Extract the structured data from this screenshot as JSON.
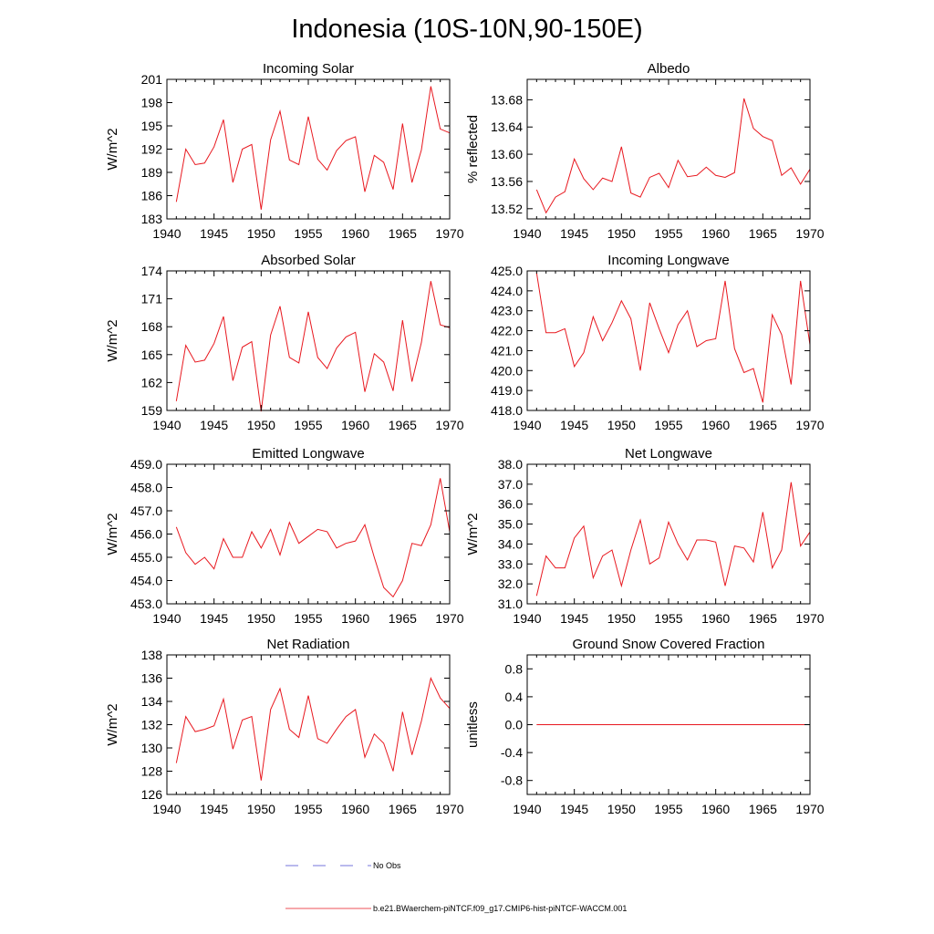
{
  "title": "Indonesia (10S-10N,90-150E)",
  "colors": {
    "model": "#e8181f",
    "obs": "#4a4ad0"
  },
  "legend": {
    "obs_label": "No Obs",
    "model_label": "b.e21.BWaerchem-piNTCF.f09_g17.CMIP6-hist-piNTCF-WACCM.001"
  },
  "chart_data": [
    {
      "type": "line",
      "title": "Incoming Solar",
      "ylabel": "W/m^2",
      "xlim": [
        1940,
        1970
      ],
      "ylim": [
        183,
        201
      ],
      "xticks": [
        1940,
        1945,
        1950,
        1955,
        1960,
        1965,
        1970
      ],
      "yticks": [
        "183",
        "186",
        "189",
        "192",
        "195",
        "198",
        "201"
      ],
      "x": [
        1941,
        1942,
        1943,
        1944,
        1945,
        1946,
        1947,
        1948,
        1949,
        1950,
        1951,
        1952,
        1953,
        1954,
        1955,
        1956,
        1957,
        1958,
        1959,
        1960,
        1961,
        1962,
        1963,
        1964,
        1965,
        1966,
        1967,
        1968,
        1969,
        1970
      ],
      "series": [
        {
          "values": [
            185.2,
            192.0,
            190.0,
            190.2,
            192.3,
            195.8,
            187.7,
            192.0,
            192.6,
            184.2,
            193.2,
            196.9,
            190.6,
            190.0,
            196.2,
            190.7,
            189.3,
            191.8,
            193.1,
            193.6,
            186.5,
            191.2,
            190.3,
            186.8,
            195.3,
            187.7,
            191.9,
            200.1,
            194.6,
            194.1
          ]
        }
      ]
    },
    {
      "type": "line",
      "title": "Albedo",
      "ylabel": "% reflected",
      "xlim": [
        1940,
        1970
      ],
      "ylim": [
        13.505,
        13.71
      ],
      "xticks": [
        1940,
        1945,
        1950,
        1955,
        1960,
        1965,
        1970
      ],
      "yticks": [
        "13.52",
        "13.56",
        "13.60",
        "13.64",
        "13.68"
      ],
      "x": [
        1941,
        1942,
        1943,
        1944,
        1945,
        1946,
        1947,
        1948,
        1949,
        1950,
        1951,
        1952,
        1953,
        1954,
        1955,
        1956,
        1957,
        1958,
        1959,
        1960,
        1961,
        1962,
        1963,
        1964,
        1965,
        1966,
        1967,
        1968,
        1969,
        1970
      ],
      "series": [
        {
          "values": [
            13.548,
            13.514,
            13.537,
            13.545,
            13.593,
            13.564,
            13.548,
            13.565,
            13.56,
            13.611,
            13.543,
            13.537,
            13.566,
            13.572,
            13.551,
            13.591,
            13.567,
            13.569,
            13.581,
            13.569,
            13.566,
            13.573,
            13.682,
            13.638,
            13.626,
            13.62,
            13.569,
            13.58,
            13.556,
            13.578
          ]
        }
      ]
    },
    {
      "type": "line",
      "title": "Absorbed Solar",
      "ylabel": "W/m^2",
      "xlim": [
        1940,
        1970
      ],
      "ylim": [
        159,
        174
      ],
      "xticks": [
        1940,
        1945,
        1950,
        1955,
        1960,
        1965,
        1970
      ],
      "yticks": [
        "159",
        "162",
        "165",
        "168",
        "171",
        "174"
      ],
      "x": [
        1941,
        1942,
        1943,
        1944,
        1945,
        1946,
        1947,
        1948,
        1949,
        1950,
        1951,
        1952,
        1953,
        1954,
        1955,
        1956,
        1957,
        1958,
        1959,
        1960,
        1961,
        1962,
        1963,
        1964,
        1965,
        1966,
        1967,
        1968,
        1969,
        1970
      ],
      "series": [
        {
          "values": [
            160.0,
            166.0,
            164.2,
            164.4,
            166.2,
            169.1,
            162.2,
            165.8,
            166.4,
            158.9,
            167.1,
            170.2,
            164.7,
            164.1,
            169.6,
            164.7,
            163.5,
            165.7,
            166.9,
            167.4,
            161.0,
            165.1,
            164.2,
            161.1,
            168.7,
            162.1,
            166.3,
            172.9,
            168.2,
            167.9
          ]
        }
      ]
    },
    {
      "type": "line",
      "title": "Incoming Longwave",
      "ylabel": "",
      "xlim": [
        1940,
        1970
      ],
      "ylim": [
        418.0,
        425.0
      ],
      "xticks": [
        1940,
        1945,
        1950,
        1955,
        1960,
        1965,
        1970
      ],
      "yticks": [
        "418.0",
        "419.0",
        "420.0",
        "421.0",
        "422.0",
        "423.0",
        "424.0",
        "425.0"
      ],
      "x": [
        1941,
        1942,
        1943,
        1944,
        1945,
        1946,
        1947,
        1948,
        1949,
        1950,
        1951,
        1952,
        1953,
        1954,
        1955,
        1956,
        1957,
        1958,
        1959,
        1960,
        1961,
        1962,
        1963,
        1964,
        1965,
        1966,
        1967,
        1968,
        1969,
        1970
      ],
      "series": [
        {
          "values": [
            424.9,
            421.9,
            421.9,
            422.1,
            420.2,
            420.9,
            422.7,
            421.5,
            422.4,
            423.5,
            422.6,
            420.0,
            423.4,
            422.1,
            420.9,
            422.3,
            423.0,
            421.2,
            421.5,
            421.6,
            424.5,
            421.1,
            419.9,
            420.1,
            418.4,
            422.8,
            421.8,
            419.3,
            424.5,
            421.3
          ]
        }
      ]
    },
    {
      "type": "line",
      "title": "Emitted Longwave",
      "ylabel": "W/m^2",
      "xlim": [
        1940,
        1970
      ],
      "ylim": [
        453.0,
        459.0
      ],
      "xticks": [
        1940,
        1945,
        1950,
        1955,
        1960,
        1965,
        1970
      ],
      "yticks": [
        "453.0",
        "454.0",
        "455.0",
        "456.0",
        "457.0",
        "458.0",
        "459.0"
      ],
      "x": [
        1941,
        1942,
        1943,
        1944,
        1945,
        1946,
        1947,
        1948,
        1949,
        1950,
        1951,
        1952,
        1953,
        1954,
        1955,
        1956,
        1957,
        1958,
        1959,
        1960,
        1961,
        1962,
        1963,
        1964,
        1965,
        1966,
        1967,
        1968,
        1969,
        1970
      ],
      "series": [
        {
          "values": [
            456.3,
            455.2,
            454.7,
            455.0,
            454.5,
            455.8,
            455.0,
            455.0,
            456.1,
            455.4,
            456.2,
            455.1,
            456.5,
            455.6,
            455.9,
            456.2,
            456.1,
            455.4,
            455.6,
            455.7,
            456.4,
            455.0,
            453.7,
            453.3,
            454.0,
            455.6,
            455.5,
            456.4,
            458.4,
            456.1
          ]
        }
      ]
    },
    {
      "type": "line",
      "title": "Net Longwave",
      "ylabel": "W/m^2",
      "xlim": [
        1940,
        1970
      ],
      "ylim": [
        31.0,
        38.0
      ],
      "xticks": [
        1940,
        1945,
        1950,
        1955,
        1960,
        1965,
        1970
      ],
      "yticks": [
        "31.0",
        "32.0",
        "33.0",
        "34.0",
        "35.0",
        "36.0",
        "37.0",
        "38.0"
      ],
      "x": [
        1941,
        1942,
        1943,
        1944,
        1945,
        1946,
        1947,
        1948,
        1949,
        1950,
        1951,
        1952,
        1953,
        1954,
        1955,
        1956,
        1957,
        1958,
        1959,
        1960,
        1961,
        1962,
        1963,
        1964,
        1965,
        1966,
        1967,
        1968,
        1969,
        1970
      ],
      "series": [
        {
          "values": [
            31.4,
            33.4,
            32.8,
            32.8,
            34.3,
            34.9,
            32.3,
            33.4,
            33.7,
            31.9,
            33.7,
            35.2,
            33.0,
            33.3,
            35.1,
            34.0,
            33.2,
            34.2,
            34.2,
            34.1,
            31.9,
            33.9,
            33.8,
            33.1,
            35.6,
            32.8,
            33.7,
            37.1,
            33.9,
            34.6
          ]
        }
      ]
    },
    {
      "type": "line",
      "title": "Net Radiation",
      "ylabel": "W/m^2",
      "xlim": [
        1940,
        1970
      ],
      "ylim": [
        126,
        138
      ],
      "xticks": [
        1940,
        1945,
        1950,
        1955,
        1960,
        1965,
        1970
      ],
      "yticks": [
        "126",
        "128",
        "130",
        "132",
        "134",
        "136",
        "138"
      ],
      "x": [
        1941,
        1942,
        1943,
        1944,
        1945,
        1946,
        1947,
        1948,
        1949,
        1950,
        1951,
        1952,
        1953,
        1954,
        1955,
        1956,
        1957,
        1958,
        1959,
        1960,
        1961,
        1962,
        1963,
        1964,
        1965,
        1966,
        1967,
        1968,
        1969,
        1970
      ],
      "series": [
        {
          "values": [
            128.7,
            132.7,
            131.4,
            131.6,
            131.9,
            134.2,
            129.9,
            132.4,
            132.7,
            127.2,
            133.3,
            135.1,
            131.6,
            130.9,
            134.5,
            130.8,
            130.4,
            131.6,
            132.7,
            133.3,
            129.2,
            131.2,
            130.4,
            128.0,
            133.1,
            129.4,
            132.3,
            136.0,
            134.3,
            133.4
          ]
        }
      ]
    },
    {
      "type": "line",
      "title": "Ground Snow Covered Fraction",
      "ylabel": "unitless",
      "xlim": [
        1940,
        1970
      ],
      "ylim": [
        -1.0,
        1.0
      ],
      "xticks": [
        1940,
        1945,
        1950,
        1955,
        1960,
        1965,
        1970
      ],
      "yticks": [
        "-0.8",
        "-0.4",
        "0.0",
        "0.4",
        "0.8"
      ],
      "x": [
        1941,
        1942,
        1943,
        1944,
        1945,
        1946,
        1947,
        1948,
        1949,
        1950,
        1951,
        1952,
        1953,
        1954,
        1955,
        1956,
        1957,
        1958,
        1959,
        1960,
        1961,
        1962,
        1963,
        1964,
        1965,
        1966,
        1967,
        1968,
        1969,
        1970
      ],
      "series": [
        {
          "values": [
            0,
            0,
            0,
            0,
            0,
            0,
            0,
            0,
            0,
            0,
            0,
            0,
            0,
            0,
            0,
            0,
            0,
            0,
            0,
            0,
            0,
            0,
            0,
            0,
            0,
            0,
            0,
            0,
            0,
            0
          ]
        }
      ]
    }
  ]
}
